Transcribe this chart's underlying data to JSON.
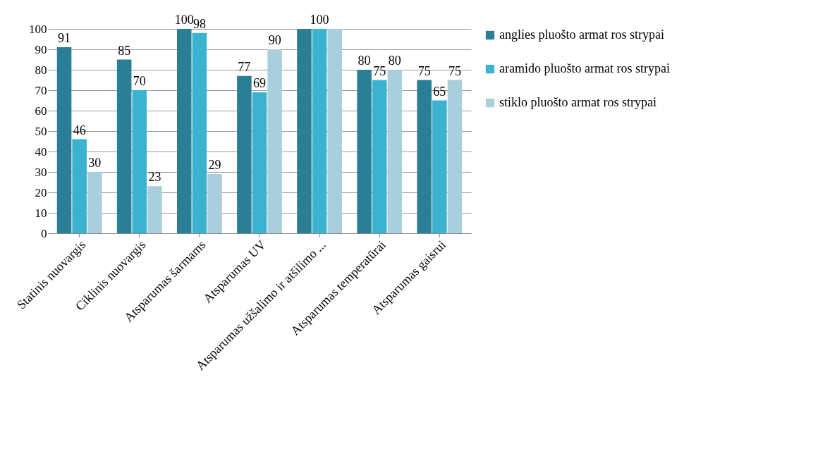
{
  "chart_data": {
    "type": "bar",
    "categories": [
      "Statinis nuovargis",
      "Ciklinis nuovargis",
      "Atsparumas šarmams",
      "Atsparumas UV",
      "Atsparumas užšalimo ir atšilimo ...",
      "Atsparumas temperatūrai",
      "Atsparumas gaisrui"
    ],
    "series": [
      {
        "name": "anglies pluošto armat  ros strypai",
        "color": "#2a7f97",
        "values": [
          91,
          85,
          100,
          77,
          100,
          80,
          75
        ],
        "value_labels": [
          "91",
          "85",
          "100",
          "77",
          null,
          "80",
          "75"
        ]
      },
      {
        "name": "aramido pluošto armat  ros strypai",
        "color": "#3bb3d0",
        "values": [
          46,
          70,
          98,
          69,
          100,
          75,
          65
        ],
        "value_labels": [
          "46",
          "70",
          "98",
          "69",
          "100",
          "75",
          "65"
        ]
      },
      {
        "name": "stiklo pluošto armat  ros strypai",
        "color": "#a9cfdc",
        "values": [
          30,
          23,
          29,
          90,
          100,
          80,
          75
        ],
        "value_labels": [
          "30",
          "23",
          "29",
          "90",
          null,
          "80",
          "75"
        ]
      }
    ],
    "ylim": [
      0,
      100
    ],
    "yticks": [
      0,
      10,
      20,
      30,
      40,
      50,
      60,
      70,
      80,
      90,
      100
    ],
    "grid": "y",
    "legend": "right"
  }
}
